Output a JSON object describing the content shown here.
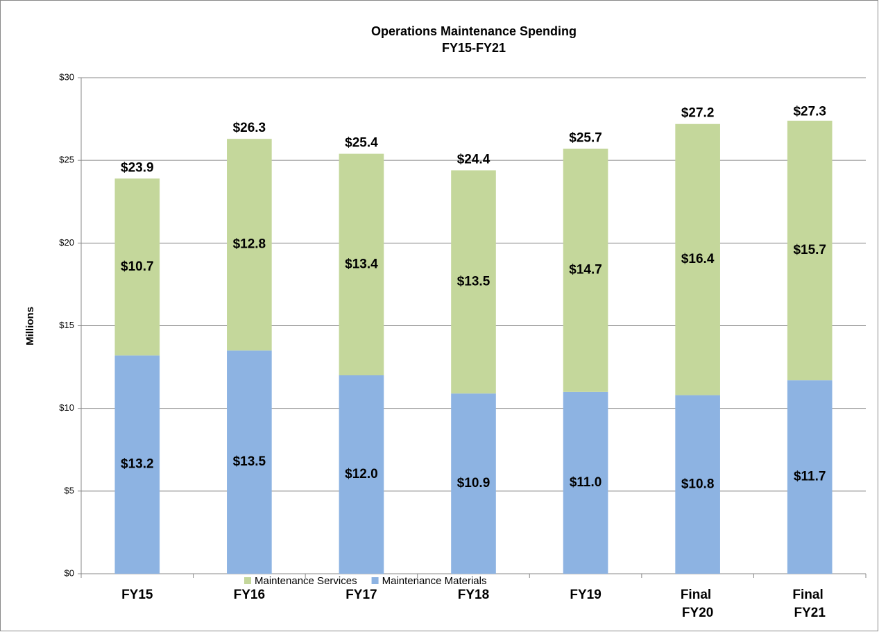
{
  "chart_data": {
    "type": "stacked_bar",
    "title": "Operations Maintenance Spending",
    "subtitle": "FY15-FY21",
    "y_label": "Millions",
    "categories": [
      "FY15",
      "FY16",
      "FY17",
      "FY18",
      "FY19",
      "Final FY20",
      "Final FY21"
    ],
    "series": [
      {
        "name": "Maintenance Materials",
        "color": "#8db3e2",
        "values": [
          13.2,
          13.5,
          12.0,
          10.9,
          11.0,
          10.8,
          11.7
        ],
        "value_labels": [
          "$13.2",
          "$13.5",
          "$12.0",
          "$10.9",
          "$11.0",
          "$10.8",
          "$11.7"
        ]
      },
      {
        "name": "Maintenance Services",
        "color": "#c4d79b",
        "values": [
          10.7,
          12.8,
          13.4,
          13.5,
          14.7,
          16.4,
          15.7
        ],
        "value_labels": [
          "$10.7",
          "$12.8",
          "$13.4",
          "$13.5",
          "$14.7",
          "$16.4",
          "$15.7"
        ]
      }
    ],
    "totals": {
      "values": [
        23.9,
        26.3,
        25.4,
        24.4,
        25.7,
        27.2,
        27.3
      ],
      "value_labels": [
        "$23.9",
        "$26.3",
        "$25.4",
        "$24.4",
        "$25.7",
        "$27.2",
        "$27.3"
      ]
    },
    "ylim": [
      0,
      30
    ],
    "yticks": [
      {
        "value": 0,
        "label": "$0"
      },
      {
        "value": 5,
        "label": "$5"
      },
      {
        "value": 10,
        "label": "$10"
      },
      {
        "value": 15,
        "label": "$15"
      },
      {
        "value": 20,
        "label": "$20"
      },
      {
        "value": 25,
        "label": "$25"
      },
      {
        "value": 30,
        "label": "$30"
      }
    ],
    "grid": true,
    "legend": "bottom"
  }
}
